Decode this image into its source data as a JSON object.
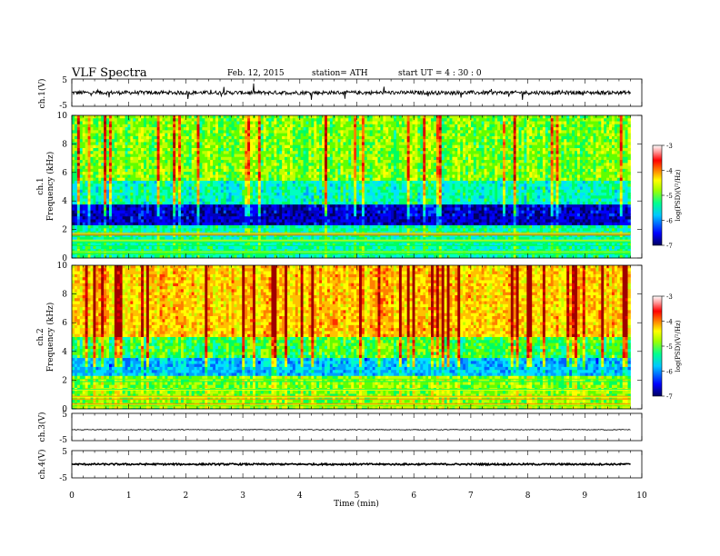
{
  "header": {
    "title": "VLF  Spectra",
    "date": "Feb. 12, 2015",
    "station": "station= ATH",
    "start": "start  UT  =   4  : 30 : 0"
  },
  "chart_data": [
    {
      "type": "line",
      "panel": "ch1-waveform",
      "ylabel": "ch.1(V)",
      "yticks": [
        "5",
        "-5"
      ],
      "ylim": [
        -5,
        5
      ],
      "xlim": [
        0,
        10
      ],
      "approx_level": 0,
      "approx_noise_amplitude": 0.7
    },
    {
      "type": "heatmap",
      "panel": "ch1-spectrogram",
      "ylabel_channel": "ch.1",
      "ylabel": "Frequency  (kHz)",
      "yticks": [
        "0",
        "2",
        "4",
        "6",
        "8",
        "10"
      ],
      "ylim": [
        0,
        10
      ],
      "xlim": [
        0,
        9.8
      ],
      "colorbar": {
        "label": "log(PSD)(V²/Hz)",
        "ticks": [
          "-3",
          "-4",
          "-5",
          "-6",
          "-7"
        ],
        "range": [
          -7,
          -3
        ],
        "colormap": [
          "#000080",
          "#0000ff",
          "#00a0ff",
          "#00ffff",
          "#00ff80",
          "#80ff00",
          "#ffff00",
          "#ff8000",
          "#ff0000",
          "#a00000",
          "#ffffff"
        ]
      }
    },
    {
      "type": "heatmap",
      "panel": "ch2-spectrogram",
      "ylabel_channel": "ch.2",
      "ylabel": "Frequency  (kHz)",
      "yticks": [
        "0",
        "2",
        "4",
        "6",
        "8",
        "10"
      ],
      "ylim": [
        0,
        10
      ],
      "xlim": [
        0,
        9.8
      ],
      "colorbar": {
        "label": "log(PSD)(V²/Hz)",
        "ticks": [
          "-3",
          "-4",
          "-5",
          "-6",
          "-7"
        ],
        "range": [
          -7,
          -3
        ]
      }
    },
    {
      "type": "line",
      "panel": "ch3-waveform",
      "ylabel": "ch.3(V)",
      "yticks": [
        "5",
        "-5"
      ],
      "ylim": [
        -5,
        5
      ],
      "approx_level": -1,
      "approx_noise_amplitude": 0.15
    },
    {
      "type": "line",
      "panel": "ch4-waveform",
      "ylabel": "ch.4(V)",
      "yticks": [
        "5",
        "-5"
      ],
      "ylim": [
        -5,
        5
      ],
      "approx_level": 0,
      "approx_noise_amplitude": 0.3
    }
  ],
  "xaxis": {
    "label": "Time  (min)",
    "ticks": [
      "0",
      "1",
      "2",
      "3",
      "4",
      "5",
      "6",
      "7",
      "8",
      "9",
      "10"
    ],
    "range": [
      0,
      10
    ]
  }
}
